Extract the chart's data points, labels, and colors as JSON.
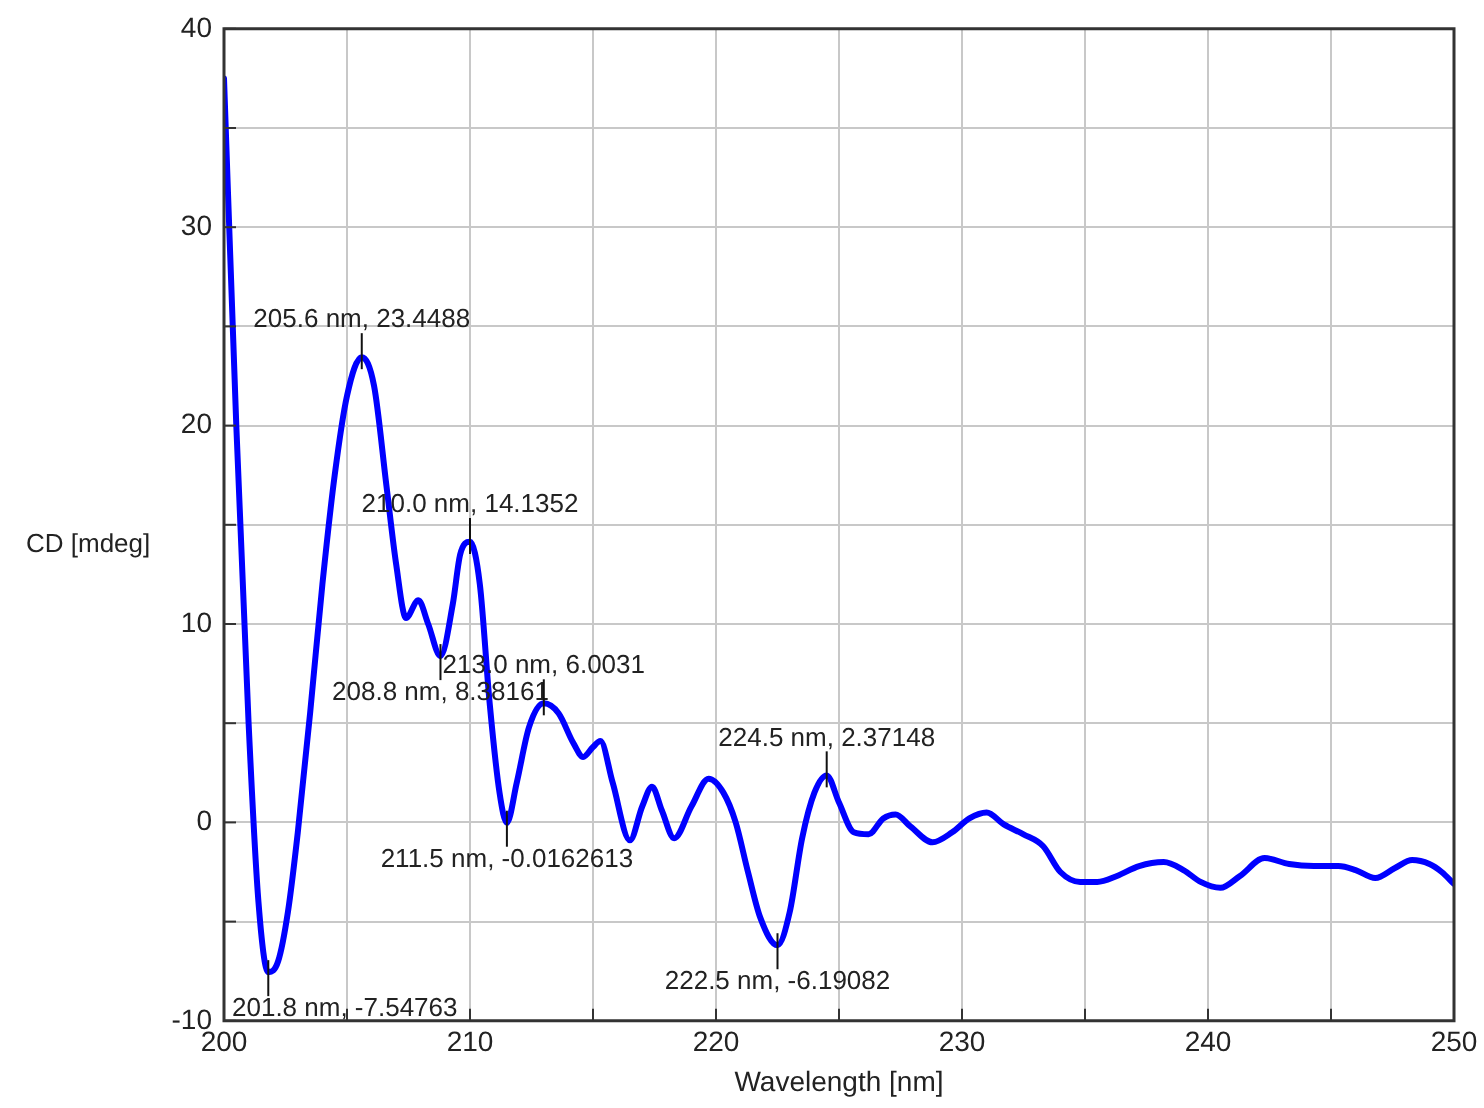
{
  "chart_data": {
    "type": "line",
    "xlabel": "Wavelength [nm]",
    "ylabel": "CD [mdeg]",
    "xlim": [
      200,
      250
    ],
    "ylim": [
      -10,
      40
    ],
    "xticks": [
      200,
      {
        "value": 205,
        "label": null
      },
      210,
      {
        "value": 215,
        "label": null
      },
      220,
      {
        "value": 225,
        "label": null
      },
      230,
      {
        "value": 235,
        "label": null
      },
      240,
      {
        "value": 245,
        "label": null
      },
      250
    ],
    "yticks": [
      -10,
      {
        "value": -5,
        "label": null
      },
      0,
      {
        "value": 5,
        "label": null
      },
      10,
      {
        "value": 15,
        "label": null
      },
      20,
      {
        "value": 25,
        "label": null
      },
      30,
      {
        "value": 35,
        "label": null
      },
      40
    ],
    "grid": true,
    "legend": false,
    "marker": "none",
    "line_style": "solid",
    "series": [
      {
        "color": "#0000ff",
        "x": [
          200,
          200.5,
          201,
          201.4,
          201.8,
          202.2,
          202.6,
          203,
          203.5,
          204,
          204.5,
          205,
          205.6,
          206.1,
          206.6,
          207,
          207.4,
          207.9,
          208.3,
          208.8,
          209.3,
          209.6,
          210,
          210.4,
          210.8,
          211.2,
          211.5,
          211.9,
          212.4,
          213,
          213.6,
          214.2,
          214.6,
          215,
          215.3,
          215.8,
          216.5,
          217,
          217.4,
          217.8,
          218.3,
          219,
          219.7,
          220.3,
          220.8,
          221.3,
          221.8,
          222.5,
          223,
          223.5,
          224,
          224.5,
          225,
          225.6,
          226.2,
          226.8,
          227.3,
          227.9,
          228.8,
          229.6,
          230.3,
          231,
          231.7,
          232.5,
          233.3,
          234,
          234.8,
          235.5,
          236.3,
          237.2,
          238.2,
          239,
          239.7,
          240.5,
          241.3,
          242.3,
          243.3,
          244.3,
          245.3,
          246,
          246.8,
          247.6,
          248.3,
          249,
          249.5,
          250
        ],
        "values": [
          37.5,
          20,
          5,
          -4,
          -7.55,
          -7,
          -4.5,
          -0.5,
          5.5,
          12,
          17.5,
          21.5,
          23.45,
          22,
          17,
          13,
          10.3,
          11.2,
          10,
          8.38,
          11,
          13.5,
          14.14,
          12,
          6,
          1.5,
          -0.02,
          2,
          4.8,
          6,
          5.5,
          4,
          3.3,
          3.8,
          4.1,
          2,
          -0.9,
          0.8,
          1.8,
          0.6,
          -0.8,
          0.8,
          2.2,
          1.5,
          0,
          -2.5,
          -4.8,
          -6.19,
          -4.5,
          -0.8,
          1.5,
          2.37,
          1,
          -0.5,
          -0.6,
          0.2,
          0.4,
          -0.2,
          -1,
          -0.5,
          0.2,
          0.5,
          -0.1,
          -0.6,
          -1.2,
          -2.5,
          -3,
          -3,
          -2.7,
          -2.2,
          -2,
          -2.4,
          -3,
          -3.3,
          -2.7,
          -1.8,
          -2.1,
          -2.2,
          -2.2,
          -2.4,
          -2.8,
          -2.3,
          -1.9,
          -2.1,
          -2.5,
          -3.1
        ]
      }
    ],
    "annotations": [
      {
        "text": "201.8 nm, -7.54763",
        "x": 201.8,
        "y": -7.54763
      },
      {
        "text": "205.6 nm, 23.4488",
        "x": 205.6,
        "y": 23.4488
      },
      {
        "text": "208.8 nm, 8.38161",
        "x": 208.8,
        "y": 8.38161
      },
      {
        "text": "210.0 nm, 14.1352",
        "x": 210.0,
        "y": 14.1352
      },
      {
        "text": "211.5 nm, -0.0162613",
        "x": 211.5,
        "y": -0.0162613
      },
      {
        "text": "213.0 nm, 6.0031",
        "x": 213.0,
        "y": 6.0031
      },
      {
        "text": "222.5 nm, -6.19082",
        "x": 222.5,
        "y": -6.19082
      },
      {
        "text": "224.5 nm, 2.37148",
        "x": 224.5,
        "y": 2.37148
      }
    ]
  }
}
